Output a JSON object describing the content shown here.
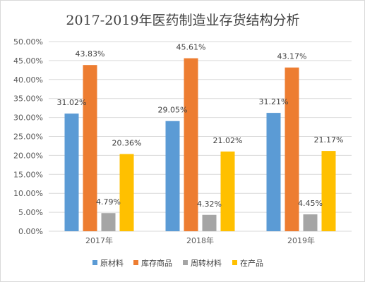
{
  "chart_data": {
    "type": "bar",
    "title": "2017-2019年医药制造业存货结构分析",
    "xlabel": "",
    "ylabel": "",
    "categories": [
      "2017年",
      "2018年",
      "2019年"
    ],
    "series": [
      {
        "name": "原材料",
        "color": "#5b9bd5",
        "values": [
          31.02,
          29.05,
          31.21
        ],
        "labels": [
          "31.02%",
          "29.05%",
          "31.21%"
        ]
      },
      {
        "name": "库存商品",
        "color": "#ed7d31",
        "values": [
          43.83,
          45.61,
          43.17
        ],
        "labels": [
          "43.83%",
          "45.61%",
          "43.17%"
        ]
      },
      {
        "name": "周转材料",
        "color": "#a5a5a5",
        "values": [
          4.79,
          4.32,
          4.45
        ],
        "labels": [
          "4.79%",
          "4.32%",
          "4.45%"
        ]
      },
      {
        "name": "在产品",
        "color": "#ffc000",
        "values": [
          20.36,
          21.02,
          21.17
        ],
        "labels": [
          "20.36%",
          "21.02%",
          "21.17%"
        ]
      }
    ],
    "ylim": [
      0,
      50
    ],
    "yticks": [
      "0.00%",
      "5.00%",
      "10.00%",
      "15.00%",
      "20.00%",
      "25.00%",
      "30.00%",
      "35.00%",
      "40.00%",
      "45.00%",
      "50.00%"
    ],
    "grid": true,
    "gridline_color": "#d9d9d9",
    "legend_position": "bottom"
  }
}
